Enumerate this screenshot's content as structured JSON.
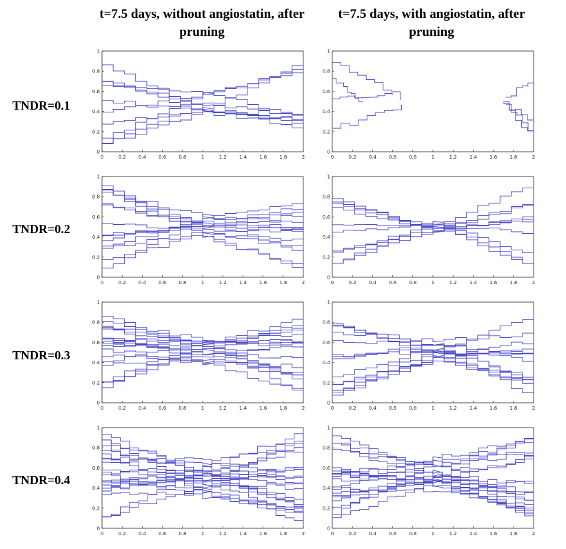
{
  "column_titles": [
    "t=7.5 days, without angiostatin, after pruning",
    "t=7.5 days, with angiostatin, after pruning"
  ],
  "row_labels": [
    "TNDR=0.1",
    "TNDR=0.2",
    "TNDR=0.3",
    "TNDR=0.4"
  ],
  "line_color": "#4a4ac8",
  "chart_data": [
    {
      "type": "line",
      "row_label": "TNDR=0.1",
      "column_title": "t=7.5 days, without angiostatin, after pruning",
      "xlim": [
        0,
        2
      ],
      "ylim": [
        0,
        1
      ],
      "xticks": [
        0,
        0.2,
        0.4,
        0.6,
        0.8,
        1,
        1.2,
        1.4,
        1.6,
        1.8,
        2
      ],
      "yticks": [
        0,
        0.2,
        0.4,
        0.6,
        0.8,
        1
      ],
      "pattern": "bridge",
      "n_vessels": 10,
      "seed": 11
    },
    {
      "type": "line",
      "row_label": "TNDR=0.1",
      "column_title": "t=7.5 days, with angiostatin, after pruning",
      "xlim": [
        0,
        2
      ],
      "ylim": [
        0,
        1
      ],
      "xticks": [
        0,
        0.2,
        0.4,
        0.6,
        0.8,
        1,
        1.2,
        1.4,
        1.6,
        1.8,
        2
      ],
      "yticks": [
        0,
        0.2,
        0.4,
        0.6,
        0.8,
        1
      ],
      "pattern": "split",
      "n_vessels": 8,
      "seed": 12
    },
    {
      "type": "line",
      "row_label": "TNDR=0.2",
      "column_title": "t=7.5 days, without angiostatin, after pruning",
      "xlim": [
        0,
        2
      ],
      "ylim": [
        0,
        1
      ],
      "xticks": [
        0,
        0.2,
        0.4,
        0.6,
        0.8,
        1,
        1.2,
        1.4,
        1.6,
        1.8,
        2
      ],
      "yticks": [
        0,
        0.2,
        0.4,
        0.6,
        0.8,
        1
      ],
      "pattern": "bridge",
      "n_vessels": 14,
      "seed": 21
    },
    {
      "type": "line",
      "row_label": "TNDR=0.2",
      "column_title": "t=7.5 days, with angiostatin, after pruning",
      "xlim": [
        0,
        2
      ],
      "ylim": [
        0,
        1
      ],
      "xticks": [
        0,
        0.2,
        0.4,
        0.6,
        0.8,
        1,
        1.2,
        1.4,
        1.6,
        1.8,
        2
      ],
      "yticks": [
        0,
        0.2,
        0.4,
        0.6,
        0.8,
        1
      ],
      "pattern": "thin-bridge",
      "n_vessels": 10,
      "seed": 22
    },
    {
      "type": "line",
      "row_label": "TNDR=0.3",
      "column_title": "t=7.5 days, without angiostatin, after pruning",
      "xlim": [
        0,
        2
      ],
      "ylim": [
        0,
        1
      ],
      "xticks": [
        0,
        0.2,
        0.4,
        0.6,
        0.8,
        1,
        1.2,
        1.4,
        1.6,
        1.8,
        2
      ],
      "yticks": [
        0,
        0.2,
        0.4,
        0.6,
        0.8,
        1
      ],
      "pattern": "bridge",
      "n_vessels": 18,
      "seed": 31
    },
    {
      "type": "line",
      "row_label": "TNDR=0.3",
      "column_title": "t=7.5 days, with angiostatin, after pruning",
      "xlim": [
        0,
        2
      ],
      "ylim": [
        0,
        1
      ],
      "xticks": [
        0,
        0.2,
        0.4,
        0.6,
        0.8,
        1,
        1.2,
        1.4,
        1.6,
        1.8,
        2
      ],
      "yticks": [
        0,
        0.2,
        0.4,
        0.6,
        0.8,
        1
      ],
      "pattern": "bridge",
      "n_vessels": 14,
      "seed": 32
    },
    {
      "type": "line",
      "row_label": "TNDR=0.4",
      "column_title": "t=7.5 days, without angiostatin, after pruning",
      "xlim": [
        0,
        2
      ],
      "ylim": [
        0,
        1
      ],
      "xticks": [
        0,
        0.2,
        0.4,
        0.6,
        0.8,
        1,
        1.2,
        1.4,
        1.6,
        1.8,
        2
      ],
      "yticks": [
        0,
        0.2,
        0.4,
        0.6,
        0.8,
        1
      ],
      "pattern": "wide-bridge",
      "n_vessels": 22,
      "seed": 41
    },
    {
      "type": "line",
      "row_label": "TNDR=0.4",
      "column_title": "t=7.5 days, with angiostatin, after pruning",
      "xlim": [
        0,
        2
      ],
      "ylim": [
        0,
        1
      ],
      "xticks": [
        0,
        0.2,
        0.4,
        0.6,
        0.8,
        1,
        1.2,
        1.4,
        1.6,
        1.8,
        2
      ],
      "yticks": [
        0,
        0.2,
        0.4,
        0.6,
        0.8,
        1
      ],
      "pattern": "wide-bridge",
      "n_vessels": 20,
      "seed": 42
    }
  ]
}
